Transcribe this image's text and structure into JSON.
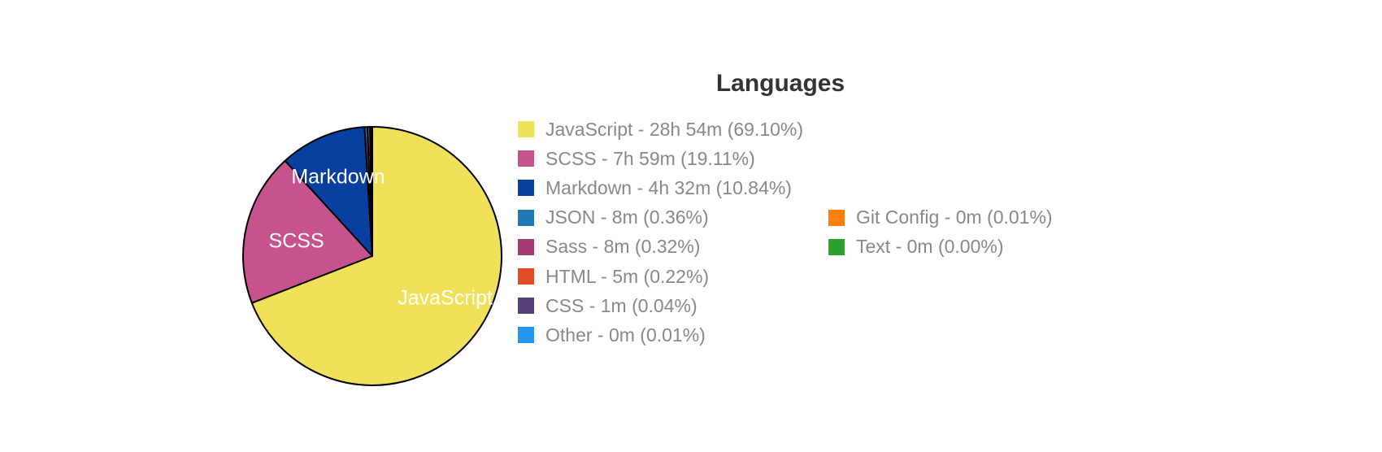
{
  "chart_data": {
    "type": "pie",
    "title": "Languages",
    "slices": [
      {
        "name": "JavaScript",
        "legend": "JavaScript - 28h 54m (69.10%)",
        "value": 69.1,
        "color": "#f1e05a",
        "show_label": true
      },
      {
        "name": "SCSS",
        "legend": "SCSS - 7h 59m (19.11%)",
        "value": 19.11,
        "color": "#c6538c",
        "show_label": true
      },
      {
        "name": "Markdown",
        "legend": "Markdown - 4h 32m (10.84%)",
        "value": 10.84,
        "color": "#083fa1",
        "show_label": true
      },
      {
        "name": "JSON",
        "legend": "JSON - 8m (0.36%)",
        "value": 0.36,
        "color": "#1f77b4",
        "show_label": false
      },
      {
        "name": "Sass",
        "legend": "Sass - 8m (0.32%)",
        "value": 0.32,
        "color": "#a53b70",
        "show_label": false
      },
      {
        "name": "HTML",
        "legend": "HTML - 5m (0.22%)",
        "value": 0.22,
        "color": "#e34c26",
        "show_label": false
      },
      {
        "name": "CSS",
        "legend": "CSS - 1m (0.04%)",
        "value": 0.04,
        "color": "#563d7c",
        "show_label": false
      },
      {
        "name": "Other",
        "legend": "Other - 0m (0.01%)",
        "value": 0.01,
        "color": "#2196f3",
        "show_label": false
      },
      {
        "name": "Git Config",
        "legend": "Git Config - 0m (0.01%)",
        "value": 0.01,
        "color": "#ff7f0e",
        "show_label": false
      },
      {
        "name": "Text",
        "legend": "Text - 0m (0.00%)",
        "value": 0.0,
        "color": "#2ca02c",
        "show_label": false
      }
    ],
    "legend_placement": "right",
    "legend_columns": 2
  }
}
